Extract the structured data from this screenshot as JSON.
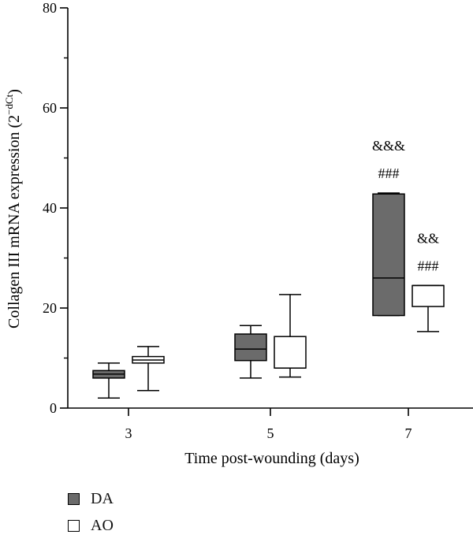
{
  "chart_data": {
    "type": "box",
    "xlabel": "Time post-wounding (days)",
    "ylabel": "Collagen III mRNA expression (2",
    "ylabel_sup": "−dCt",
    "ylabel_end": ")",
    "ylim": [
      0,
      80
    ],
    "yticks": [
      "0",
      "20",
      "40",
      "60",
      "80"
    ],
    "categories": [
      "3",
      "5",
      "7"
    ],
    "grid": false,
    "legend_position": "bottom-left",
    "series": [
      {
        "name": "DA",
        "color": "#6b6b6b",
        "boxes": [
          {
            "category": "3",
            "min": 2.0,
            "q1": 6.0,
            "median": 6.8,
            "q3": 7.5,
            "max": 9.0
          },
          {
            "category": "5",
            "min": 6.0,
            "q1": 9.5,
            "median": 11.8,
            "q3": 14.8,
            "max": 16.5
          },
          {
            "category": "7",
            "min": 18.5,
            "q1": 18.5,
            "median": 26.0,
            "q3": 42.8,
            "max": 43.0
          }
        ]
      },
      {
        "name": "AO",
        "color": "#ffffff",
        "boxes": [
          {
            "category": "3",
            "min": 3.5,
            "q1": 9.0,
            "median": 9.6,
            "q3": 10.3,
            "max": 12.3
          },
          {
            "category": "5",
            "min": 6.2,
            "q1": 8.0,
            "median": 8.0,
            "q3": 14.3,
            "max": 22.7
          },
          {
            "category": "7",
            "min": 15.3,
            "q1": 20.3,
            "median": 24.5,
            "q3": 24.5,
            "max": 24.5
          }
        ]
      }
    ],
    "annotations": [
      {
        "text": "&&&",
        "category": "7",
        "series": "DA",
        "y": 51.5
      },
      {
        "text": "###",
        "category": "7",
        "series": "DA",
        "y": 46.0
      },
      {
        "text": "&&",
        "category": "7",
        "series": "AO",
        "y": 33.0
      },
      {
        "text": "###",
        "category": "7",
        "series": "AO",
        "y": 27.5
      }
    ]
  }
}
